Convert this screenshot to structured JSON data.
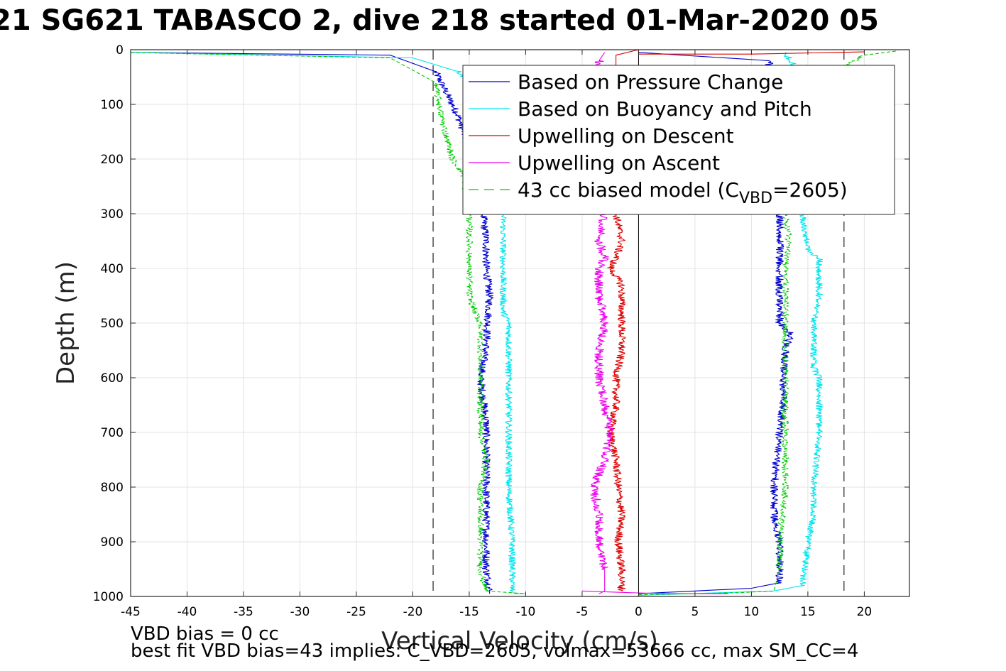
{
  "title": "21 SG621 TABASCO 2, dive 218 started 01-Mar-2020 05",
  "notes": {
    "line1": "VBD bias = 0 cc",
    "line2": "best fit VBD bias=43 implies: C_VBD=2605, volmax=53666 cc, max SM_CC=4"
  },
  "chart_data": {
    "type": "line",
    "title": "21 SG621 TABASCO 2, dive 218 started 01-Mar-2020 05",
    "xlabel": "Vertical Velocity (cm/s)",
    "ylabel": "Depth (m)",
    "xlim": [
      -45,
      24
    ],
    "ylim": [
      1000,
      0
    ],
    "y_reversed": true,
    "grid": true,
    "legend_position": "top-right",
    "xticks": [
      "-45",
      "-40",
      "-35",
      "-30",
      "-25",
      "-20",
      "-15",
      "-10",
      "-5",
      "0",
      "5",
      "10",
      "15",
      "20"
    ],
    "yticks": [
      "0",
      "100",
      "200",
      "300",
      "400",
      "500",
      "600",
      "700",
      "800",
      "900",
      "1000"
    ],
    "reference_lines": [
      {
        "x": -18.2,
        "style": "dashed",
        "color": "#333333"
      },
      {
        "x": 18.2,
        "style": "dashed",
        "color": "#333333"
      },
      {
        "x": 0,
        "style": "solid",
        "color": "#000000"
      }
    ],
    "legend": [
      {
        "label": "Based on Pressure Change",
        "color": "#0000cc",
        "style": "solid"
      },
      {
        "label": "Based on Buoyancy and Pitch",
        "color": "#00e5ee",
        "style": "solid"
      },
      {
        "label": "Upwelling on Descent",
        "color": "#dd0000",
        "style": "solid"
      },
      {
        "label": "Upwelling on Ascent",
        "color": "#ee00ee",
        "style": "solid"
      },
      {
        "label": "43 cc biased model (C",
        "sub": "VBD",
        "tail": "=2605)",
        "color": "#00cc00",
        "style": "dashed"
      }
    ],
    "series": [
      {
        "name": "Based on Pressure Change",
        "color": "#0000cc",
        "noise": 0.35,
        "x": [
          -45,
          -22,
          -18,
          -16,
          -15,
          -14.5,
          -14,
          -13.5,
          -13.5,
          -13.2,
          -13.5,
          -14,
          -13.5,
          -13.5,
          -13.5,
          -13.5,
          -13.2,
          -13.2
        ],
        "y": [
          5,
          10,
          40,
          120,
          180,
          220,
          260,
          350,
          400,
          450,
          540,
          600,
          680,
          760,
          850,
          950,
          990,
          995
        ],
        "x2": [
          0,
          10,
          12.5,
          12.5,
          12,
          12,
          12.5,
          12.8,
          12.8,
          13,
          13.5,
          12.5,
          12.5,
          12.5,
          12.5,
          12.5,
          12.8,
          12.5,
          11.5,
          0
        ],
        "y2": [
          995,
          985,
          975,
          900,
          850,
          800,
          700,
          650,
          600,
          550,
          520,
          500,
          450,
          400,
          350,
          300,
          200,
          100,
          20,
          5
        ]
      },
      {
        "name": "Based on Buoyancy and Pitch",
        "color": "#00e5ee",
        "noise": 0.3,
        "x": [
          -45,
          -20,
          -16,
          -14,
          -12.5,
          -12,
          -12,
          -12,
          -11.5,
          -11.5,
          -11.5,
          -11.5,
          -11.2,
          -11.2,
          -11,
          -10
        ],
        "y": [
          5,
          15,
          40,
          80,
          140,
          200,
          300,
          480,
          500,
          600,
          700,
          800,
          900,
          990,
          995,
          995
        ],
        "x2": [
          0,
          12,
          14.5,
          15,
          15.5,
          15.5,
          16,
          16,
          15.5,
          15.5,
          16,
          16,
          15,
          14.5,
          15,
          16,
          13
        ],
        "y2": [
          998,
          990,
          980,
          900,
          850,
          800,
          700,
          600,
          580,
          500,
          450,
          380,
          370,
          300,
          200,
          100,
          5
        ]
      },
      {
        "name": "Upwelling on Descent",
        "color": "#dd0000",
        "noise": 0.35,
        "x": [
          0,
          -2,
          -2,
          -1.5,
          -2,
          -2.5,
          -1.5,
          -1.5,
          -1.5,
          -1.5,
          -2,
          -2,
          -2.5,
          -2,
          -1.8,
          -1.5,
          -1.8,
          -1.5,
          -1.5
        ],
        "y": [
          0,
          10,
          300,
          350,
          380,
          400,
          430,
          450,
          500,
          550,
          600,
          650,
          700,
          750,
          800,
          850,
          900,
          950,
          990
        ],
        "x2": [
          0,
          10,
          15,
          20
        ],
        "y2": [
          8,
          8,
          6,
          4
        ]
      },
      {
        "name": "Upwelling on Ascent",
        "color": "#ee00ee",
        "noise": 0.4,
        "x": [
          -3.5,
          -3,
          -3,
          -3.5,
          -3.5,
          -4,
          -3,
          -2.5,
          -3,
          -3.5,
          -3.5,
          -3,
          -3.5,
          -3.5,
          -3,
          -3.5,
          -3,
          -3,
          -3.5,
          -3.5,
          -3
        ],
        "y": [
          995,
          990,
          950,
          900,
          850,
          800,
          750,
          700,
          650,
          600,
          550,
          500,
          450,
          400,
          380,
          350,
          300,
          200,
          100,
          20,
          5
        ],
        "x2": [
          -5,
          -1,
          3,
          8
        ],
        "y2": [
          990,
          993,
          995,
          995
        ]
      },
      {
        "name": "43 cc biased model (CVBD=2605)",
        "color": "#00cc00",
        "dashed": true,
        "noise": 0.3,
        "x": [
          -45,
          -22,
          -18,
          -17.5,
          -16.5,
          -15.5,
          -15,
          -15,
          -14.5,
          -14,
          -14,
          -14,
          -13.5,
          -14,
          -14,
          -14,
          -13.5,
          -10
        ],
        "y": [
          5,
          15,
          60,
          120,
          200,
          230,
          300,
          450,
          480,
          500,
          600,
          700,
          750,
          800,
          850,
          950,
          990,
          995
        ],
        "x2": [
          0,
          9,
          12,
          12.5,
          12.5,
          13,
          13,
          13,
          13,
          13,
          13,
          13.3,
          13,
          13,
          12,
          20,
          23
        ],
        "y2": [
          997,
          993,
          990,
          950,
          900,
          800,
          700,
          600,
          550,
          500,
          400,
          350,
          300,
          200,
          100,
          10,
          2
        ]
      }
    ]
  }
}
